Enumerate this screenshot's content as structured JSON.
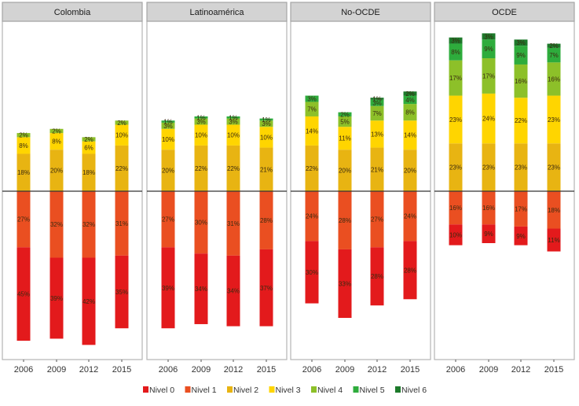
{
  "chart_data": {
    "type": "bar",
    "subtype": "diverging-stacked",
    "title": "",
    "xlabel": "",
    "ylabel": "",
    "categories": [
      "2006",
      "2009",
      "2012",
      "2015"
    ],
    "levels": [
      "Nivel 0",
      "Nivel 1",
      "Nivel 2",
      "Nivel 3",
      "Nivel 4",
      "Nivel 5",
      "Nivel 6"
    ],
    "level_colors": [
      "#e31a1c",
      "#ea4f21",
      "#e8b412",
      "#ffd500",
      "#8dc029",
      "#2eac3c",
      "#1d7a2b"
    ],
    "below_baseline_levels": [
      "Nivel 0",
      "Nivel 1"
    ],
    "value_unit": "%",
    "legend_position": "bottom",
    "panels": [
      {
        "name": "Colombia",
        "series": [
          {
            "name": "Nivel 0",
            "values": [
              45,
              39,
              42,
              35
            ]
          },
          {
            "name": "Nivel 1",
            "values": [
              27,
              32,
              32,
              31
            ]
          },
          {
            "name": "Nivel 2",
            "values": [
              18,
              20,
              18,
              22
            ]
          },
          {
            "name": "Nivel 3",
            "values": [
              8,
              8,
              6,
              10
            ]
          },
          {
            "name": "Nivel 4",
            "values": [
              2,
              2,
              2,
              2
            ]
          },
          {
            "name": "Nivel 5",
            "values": [
              0,
              0,
              0,
              0
            ]
          },
          {
            "name": "Nivel 6",
            "values": [
              0,
              0,
              0,
              0
            ]
          }
        ]
      },
      {
        "name": "Latinoamérica",
        "series": [
          {
            "name": "Nivel 0",
            "values": [
              39,
              34,
              34,
              37
            ]
          },
          {
            "name": "Nivel 1",
            "values": [
              27,
              30,
              31,
              28
            ]
          },
          {
            "name": "Nivel 2",
            "values": [
              20,
              22,
              22,
              21
            ]
          },
          {
            "name": "Nivel 3",
            "values": [
              10,
              10,
              10,
              10
            ]
          },
          {
            "name": "Nivel 4",
            "values": [
              3,
              3,
              3,
              3
            ]
          },
          {
            "name": "Nivel 5",
            "values": [
              1,
              1,
              1,
              1
            ]
          },
          {
            "name": "Nivel 6",
            "values": [
              0,
              0,
              0,
              0
            ]
          }
        ]
      },
      {
        "name": "No-OCDE",
        "series": [
          {
            "name": "Nivel 0",
            "values": [
              30,
              33,
              28,
              28
            ]
          },
          {
            "name": "Nivel 1",
            "values": [
              24,
              28,
              27,
              24
            ]
          },
          {
            "name": "Nivel 2",
            "values": [
              22,
              20,
              21,
              20
            ]
          },
          {
            "name": "Nivel 3",
            "values": [
              14,
              11,
              13,
              14
            ]
          },
          {
            "name": "Nivel 4",
            "values": [
              7,
              5,
              7,
              8
            ]
          },
          {
            "name": "Nivel 5",
            "values": [
              3,
              2,
              3,
              4
            ]
          },
          {
            "name": "Nivel 6",
            "values": [
              0,
              0,
              1,
              2
            ]
          }
        ]
      },
      {
        "name": "OCDE",
        "series": [
          {
            "name": "Nivel 0",
            "values": [
              10,
              9,
              9,
              11
            ]
          },
          {
            "name": "Nivel 1",
            "values": [
              16,
              16,
              17,
              18
            ]
          },
          {
            "name": "Nivel 2",
            "values": [
              23,
              23,
              23,
              23
            ]
          },
          {
            "name": "Nivel 3",
            "values": [
              23,
              24,
              22,
              23
            ]
          },
          {
            "name": "Nivel 4",
            "values": [
              17,
              17,
              16,
              16
            ]
          },
          {
            "name": "Nivel 5",
            "values": [
              8,
              9,
              9,
              7
            ]
          },
          {
            "name": "Nivel 6",
            "values": [
              3,
              3,
              3,
              2
            ]
          }
        ]
      }
    ]
  }
}
